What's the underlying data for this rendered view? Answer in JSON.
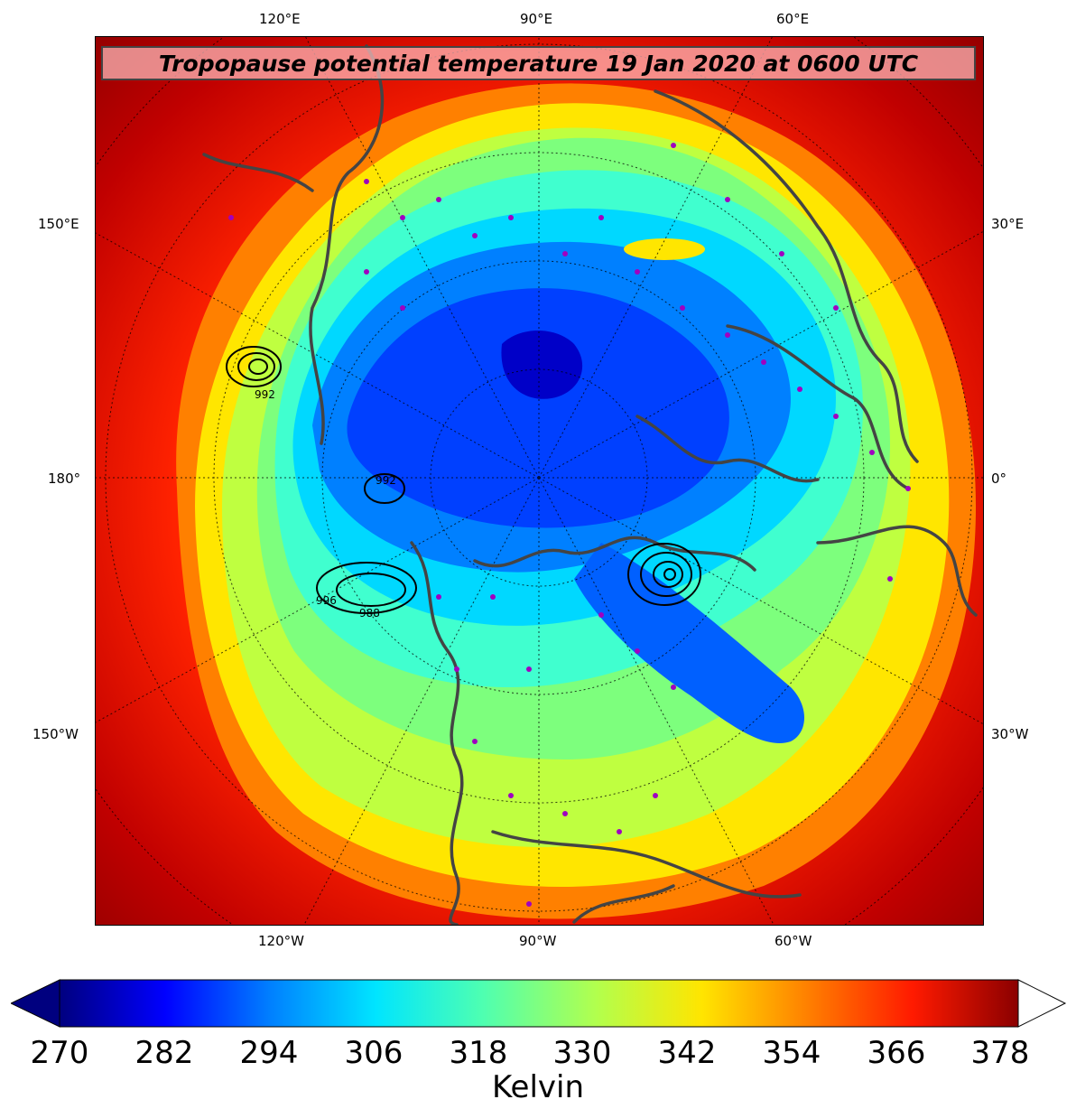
{
  "title": "Tropopause potential temperature 19 Jan 2020 at 0600 UTC",
  "colorbar": {
    "label": "Kelvin",
    "ticks": [
      "270",
      "282",
      "294",
      "306",
      "318",
      "330",
      "342",
      "354",
      "366",
      "378"
    ],
    "colors": [
      "#00007f",
      "#0000ff",
      "#0080ff",
      "#00e5ff",
      "#4dffb2",
      "#b2ff4d",
      "#ffe500",
      "#ff8000",
      "#ff1a00",
      "#8b0000"
    ]
  },
  "lon_labels": {
    "top": [
      "120°E",
      "90°E",
      "60°E"
    ],
    "bottom": [
      "120°W",
      "90°W",
      "60°W"
    ],
    "left": [
      "150°E",
      "180°",
      "150°W"
    ],
    "right": [
      "30°E",
      "0°",
      "30°W"
    ]
  },
  "pressure_labels": [
    "992",
    "988",
    "996",
    "992"
  ],
  "colors": {
    "outer": "#8b0000",
    "red": "#ff2a00",
    "orange": "#ff8000",
    "yellow": "#ffe600",
    "green_yellow": "#bfff40",
    "green": "#7dff7d",
    "aqua": "#40ffcf",
    "cyan": "#00d8ff",
    "blue_light": "#0080ff",
    "blue": "#0040ff",
    "blue_dark": "#0000c8",
    "station_markers": "#a000c0",
    "coastlines": "#444444"
  }
}
